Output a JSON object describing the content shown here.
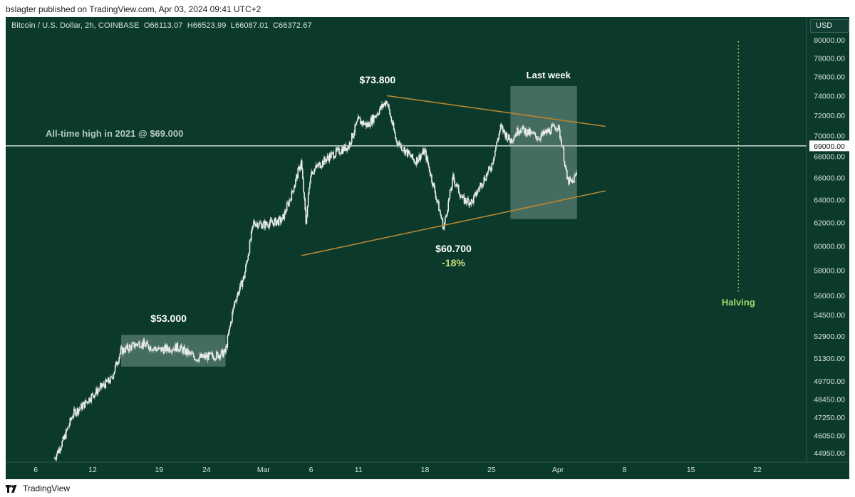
{
  "header": {
    "published_by": "bslagter published on TradingView.com, Apr 03, 2024 09:41 UTC+2"
  },
  "footer": {
    "brand": "TradingView",
    "logo_icon": "tradingview-logo-icon"
  },
  "colors": {
    "background": "#0b3a2c",
    "candle": "#e8ece9",
    "trendline": "#b8862f",
    "highlight_box": "rgba(206,226,218,0.30)",
    "ath_line": "#b9c9c1",
    "halving": "#9fd86a",
    "pct_label": "#c9e07a"
  },
  "chart_data": {
    "type": "candlestick",
    "title": "Bitcoin / U.S. Dollar, 2h, COINBASE",
    "ohlc_label": {
      "open": "O66113.07",
      "high": "H66523.99",
      "low": "L66087.01",
      "close": "C66372.67"
    },
    "currency": "USD",
    "y_scale": "log",
    "y_ticks": [
      44950,
      46050,
      47250,
      48450,
      49700,
      51300,
      52900,
      54500,
      56000,
      58000,
      60000,
      62000,
      64000,
      66000,
      68000,
      70000,
      72000,
      74000,
      76000,
      78000,
      80000
    ],
    "y_tick_labels": [
      "44950.00",
      "46050.00",
      "47250.00",
      "48450.00",
      "49700.00",
      "51300.00",
      "52900.00",
      "54500.00",
      "56000.00",
      "58000.00",
      "60000.00",
      "62000.00",
      "64000.00",
      "66000.00",
      "68000.00",
      "70000.00",
      "72000.00",
      "74000.00",
      "76000.00",
      "78000.00",
      "80000.00"
    ],
    "x_ticks": [
      "6",
      "12",
      "19",
      "24",
      "Mar",
      "6",
      "11",
      "18",
      "25",
      "Apr",
      "8",
      "15",
      "22"
    ],
    "x_tick_dates": [
      "2024-02-06",
      "2024-02-12",
      "2024-02-19",
      "2024-02-24",
      "2024-03-01",
      "2024-03-06",
      "2024-03-11",
      "2024-03-18",
      "2024-03-25",
      "2024-04-01",
      "2024-04-08",
      "2024-04-15",
      "2024-04-22"
    ],
    "x_range": [
      "2024-02-03",
      "2024-04-28"
    ],
    "price_path": [
      [
        "2024-02-08",
        44600
      ],
      [
        "2024-02-09",
        45800
      ],
      [
        "2024-02-10",
        47500
      ],
      [
        "2024-02-11",
        48000
      ],
      [
        "2024-02-12",
        48700
      ],
      [
        "2024-02-13",
        49300
      ],
      [
        "2024-02-14",
        49800
      ],
      [
        "2024-02-15",
        51800
      ],
      [
        "2024-02-17",
        52400
      ],
      [
        "2024-02-19",
        51900
      ],
      [
        "2024-02-21",
        52100
      ],
      [
        "2024-02-23",
        51300
      ],
      [
        "2024-02-25",
        51500
      ],
      [
        "2024-02-26",
        51700
      ],
      [
        "2024-02-27",
        55500
      ],
      [
        "2024-02-28",
        57500
      ],
      [
        "2024-02-29",
        62000
      ],
      [
        "2024-03-01",
        61800
      ],
      [
        "2024-03-03",
        62200
      ],
      [
        "2024-03-04",
        64500
      ],
      [
        "2024-03-05",
        67500
      ],
      [
        "2024-03-05T12",
        62000
      ],
      [
        "2024-03-06",
        66500
      ],
      [
        "2024-03-08",
        68000
      ],
      [
        "2024-03-10",
        69000
      ],
      [
        "2024-03-11",
        71500
      ],
      [
        "2024-03-12",
        71000
      ],
      [
        "2024-03-14",
        73500
      ],
      [
        "2024-03-15",
        69500
      ],
      [
        "2024-03-17",
        67500
      ],
      [
        "2024-03-18",
        68500
      ],
      [
        "2024-03-19",
        65000
      ],
      [
        "2024-03-20",
        61500
      ],
      [
        "2024-03-21",
        66000
      ],
      [
        "2024-03-22",
        64000
      ],
      [
        "2024-03-23",
        63800
      ],
      [
        "2024-03-24",
        65500
      ],
      [
        "2024-03-25",
        67000
      ],
      [
        "2024-03-26",
        70800
      ],
      [
        "2024-03-27",
        69500
      ],
      [
        "2024-03-28",
        70700
      ],
      [
        "2024-03-30",
        69800
      ],
      [
        "2024-04-01",
        71000
      ],
      [
        "2024-04-01T12",
        69000
      ],
      [
        "2024-04-02",
        65800
      ],
      [
        "2024-04-02T12",
        65500
      ],
      [
        "2024-04-03",
        66372
      ]
    ],
    "annotations": {
      "ath_line": {
        "price": 69000,
        "label": "All-time high in 2021 @ $69.000",
        "axis_tag": "69000.00"
      },
      "high_label": "$73.800",
      "low_label": "$60.700",
      "drawdown_label": "-18%",
      "range_label": "$53.000",
      "last_week_label": "Last week",
      "halving_label": "Halving",
      "halving_date": "2024-04-20",
      "upper_trendline": {
        "from": [
          "2024-03-14",
          74000
        ],
        "to": [
          "2024-04-06",
          70900
        ]
      },
      "lower_trendline": {
        "from": [
          "2024-03-05",
          59200
        ],
        "to": [
          "2024-04-06",
          64800
        ]
      },
      "range_box": {
        "from": [
          "2024-02-15",
          50700
        ],
        "to": [
          "2024-02-26",
          53000
        ]
      },
      "last_week_box": {
        "from": [
          "2024-03-27",
          62300
        ],
        "to": [
          "2024-04-03",
          75000
        ]
      }
    }
  }
}
